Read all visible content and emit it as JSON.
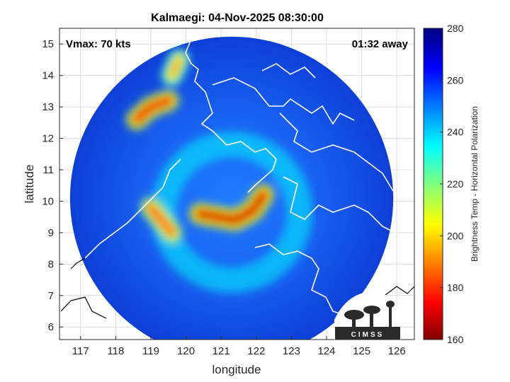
{
  "chart_data": {
    "type": "heatmap",
    "title": "Kalmaegi: 04-Nov-2025 08:30:00",
    "xlabel": "longitude",
    "ylabel": "latitude",
    "xlim": [
      116.4,
      126.5
    ],
    "ylim": [
      5.6,
      15.5
    ],
    "xticks": [
      117,
      118,
      119,
      120,
      121,
      122,
      123,
      124,
      125,
      126
    ],
    "yticks": [
      6,
      7,
      8,
      9,
      10,
      11,
      12,
      13,
      14,
      15
    ],
    "grid": true,
    "annotations": {
      "top_left": "Vmax: 70 kts",
      "top_right": "01:32 away"
    },
    "colorbar": {
      "label": "Brightness Temp - Horizontal Polarization",
      "min": 160,
      "max": 280,
      "ticks": [
        160,
        180,
        200,
        220,
        240,
        260,
        280
      ],
      "colormap": "jet"
    },
    "swath": {
      "center": [
        121.3,
        10.1
      ],
      "radius_deg": 4.6
    },
    "features": [
      {
        "name": "eyewall-arc",
        "lon": [
          120.4,
          120.9,
          121.4,
          121.9,
          122.2
        ],
        "lat": [
          9.6,
          9.5,
          9.4,
          9.7,
          10.2
        ],
        "tb": 168
      },
      {
        "name": "west-band",
        "lon": [
          119.0,
          119.3,
          119.6
        ],
        "lat": [
          9.8,
          9.4,
          9.0
        ],
        "tb": 180
      },
      {
        "name": "outer-band-nw",
        "lon": [
          118.6,
          119.0,
          119.5
        ],
        "lat": [
          12.6,
          13.0,
          13.2
        ],
        "tb": 172
      },
      {
        "name": "outer-band-n",
        "lon": [
          119.6,
          119.8
        ],
        "lat": [
          14.0,
          14.5
        ],
        "tb": 190
      }
    ]
  },
  "logo": {
    "text": "CIMSS"
  }
}
